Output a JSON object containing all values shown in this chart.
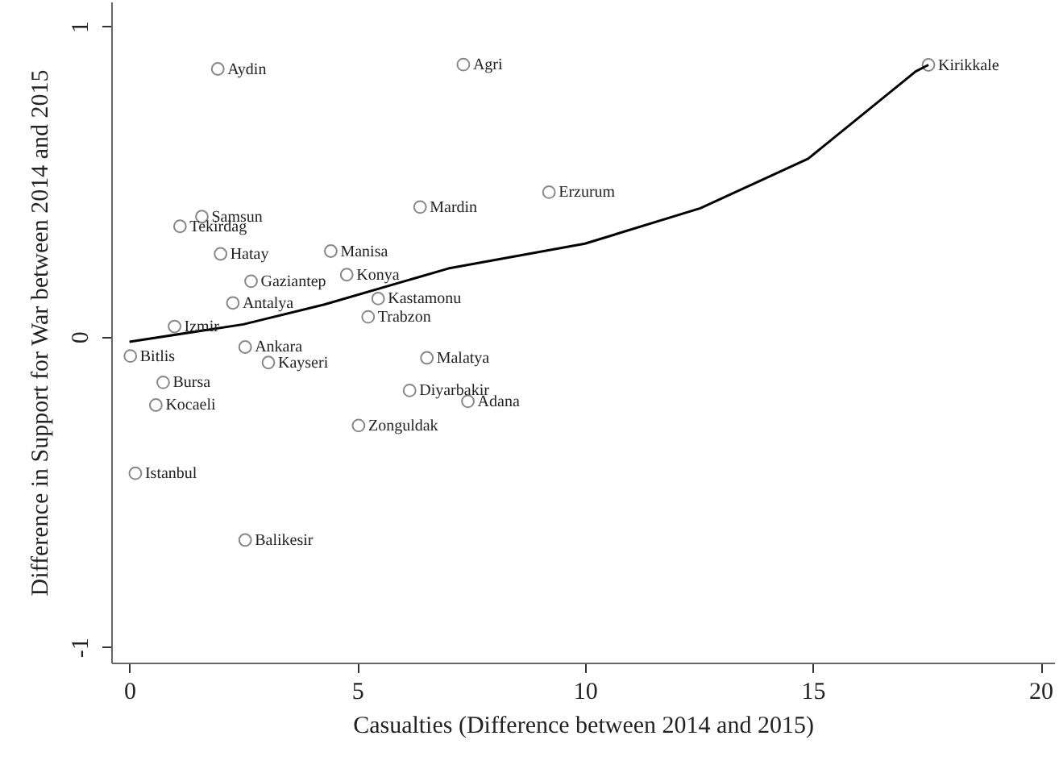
{
  "chart_data": {
    "type": "scatter",
    "xlabel": "Casualties (Difference between 2014 and 2015)",
    "ylabel": "Difference in Support for War between 2014 and 2015",
    "xlim": [
      -0.4,
      20.3
    ],
    "xticks": [
      0,
      5,
      10,
      15,
      20
    ],
    "ylim": [
      -1.05,
      1.08
    ],
    "yticks": [
      -1,
      0,
      1
    ],
    "grid": false,
    "marker": "circle",
    "series": [
      {
        "color": "#555555",
        "x": [
          1.94,
          7.33,
          17.54,
          9.21,
          6.38,
          1.59,
          1.11,
          2.0,
          4.42,
          2.67,
          4.77,
          2.27,
          5.46,
          5.24,
          0.99,
          0.02,
          2.54,
          3.05,
          6.53,
          0.74,
          0.58,
          6.15,
          7.43,
          5.03,
          0.13,
          2.54
        ],
        "values": [
          0.863,
          0.877,
          0.876,
          0.466,
          0.418,
          0.387,
          0.356,
          0.267,
          0.276,
          0.179,
          0.2,
          0.109,
          0.123,
          0.064,
          0.033,
          -0.062,
          -0.033,
          -0.083,
          -0.068,
          -0.147,
          -0.22,
          -0.173,
          -0.208,
          -0.286,
          -0.44,
          -0.655
        ]
      },
      {
        "type": "line",
        "color": "#000000",
        "line_style": "solid",
        "marker": "none",
        "x": [
          0,
          2.5,
          4.28,
          7,
          10,
          12.53,
          14.9,
          17.26,
          17.54
        ],
        "values": [
          -0.016,
          0.04,
          0.104,
          0.22,
          0.3,
          0.414,
          0.574,
          0.855,
          0.876
        ]
      }
    ],
    "annotations": [
      {
        "text": "Aydin",
        "x": 1.94,
        "y": 0.863
      },
      {
        "text": "Agri",
        "x": 7.33,
        "y": 0.877
      },
      {
        "text": "Kirikkale",
        "x": 17.54,
        "y": 0.876
      },
      {
        "text": "Erzurum",
        "x": 9.21,
        "y": 0.466
      },
      {
        "text": "Mardin",
        "x": 6.38,
        "y": 0.418
      },
      {
        "text": "Samsun",
        "x": 1.59,
        "y": 0.387
      },
      {
        "text": "Tekirdag",
        "x": 1.11,
        "y": 0.356
      },
      {
        "text": "Hatay",
        "x": 2.0,
        "y": 0.267
      },
      {
        "text": "Manisa",
        "x": 4.42,
        "y": 0.276
      },
      {
        "text": "Gaziantep",
        "x": 2.67,
        "y": 0.179
      },
      {
        "text": "Konya",
        "x": 4.77,
        "y": 0.2
      },
      {
        "text": "Antalya",
        "x": 2.27,
        "y": 0.109
      },
      {
        "text": "Kastamonu",
        "x": 5.46,
        "y": 0.123
      },
      {
        "text": "Trabzon",
        "x": 5.24,
        "y": 0.064
      },
      {
        "text": "Izmir",
        "x": 0.99,
        "y": 0.033
      },
      {
        "text": "Bitlis",
        "x": 0.02,
        "y": -0.062
      },
      {
        "text": "Ankara",
        "x": 2.54,
        "y": -0.033
      },
      {
        "text": "Kayseri",
        "x": 3.05,
        "y": -0.083
      },
      {
        "text": "Malatya",
        "x": 6.53,
        "y": -0.068
      },
      {
        "text": "Bursa",
        "x": 0.74,
        "y": -0.147
      },
      {
        "text": "Kocaeli",
        "x": 0.58,
        "y": -0.22
      },
      {
        "text": "Diyarbakir",
        "x": 6.15,
        "y": -0.173
      },
      {
        "text": "Adana",
        "x": 7.43,
        "y": -0.208
      },
      {
        "text": "Zonguldak",
        "x": 5.03,
        "y": -0.286
      },
      {
        "text": "Istanbul",
        "x": 0.13,
        "y": -0.44
      },
      {
        "text": "Balikesir",
        "x": 2.54,
        "y": -0.655
      }
    ]
  }
}
